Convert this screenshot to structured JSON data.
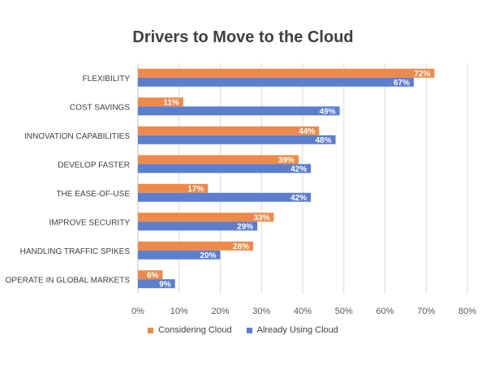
{
  "chart_data": {
    "type": "bar",
    "orientation": "horizontal",
    "title": "Drivers to Move to the Cloud",
    "categories": [
      "FLEXIBILITY",
      "COST SAVINGS",
      "INNOVATION CAPABILITIES",
      "DEVELOP FASTER",
      "THE EASE-OF-USE",
      "IMPROVE SECURITY",
      "HANDLING TRAFFIC SPIKES",
      "OPERATE IN GLOBAL MARKETS"
    ],
    "series": [
      {
        "name": "Considering Cloud",
        "color": "#ED8A4A",
        "values": [
          72,
          11,
          44,
          39,
          17,
          33,
          28,
          6
        ],
        "labels": [
          "72%",
          "11%",
          "44%",
          "39%",
          "17%",
          "33%",
          "28%",
          "6%"
        ]
      },
      {
        "name": "Already Using Cloud",
        "color": "#5B7ECF",
        "values": [
          67,
          49,
          48,
          42,
          42,
          29,
          20,
          9
        ],
        "labels": [
          "67%",
          "49%",
          "48%",
          "42%",
          "42%",
          "29%",
          "20%",
          "9%"
        ]
      }
    ],
    "xlim": [
      0,
      80
    ],
    "xticks": [
      "0%",
      "10%",
      "20%",
      "30%",
      "40%",
      "50%",
      "60%",
      "70%",
      "80%"
    ],
    "x_tick_values": [
      0,
      10,
      20,
      30,
      40,
      50,
      60,
      70,
      80
    ],
    "grid": "vertical",
    "legend_position": "bottom"
  }
}
